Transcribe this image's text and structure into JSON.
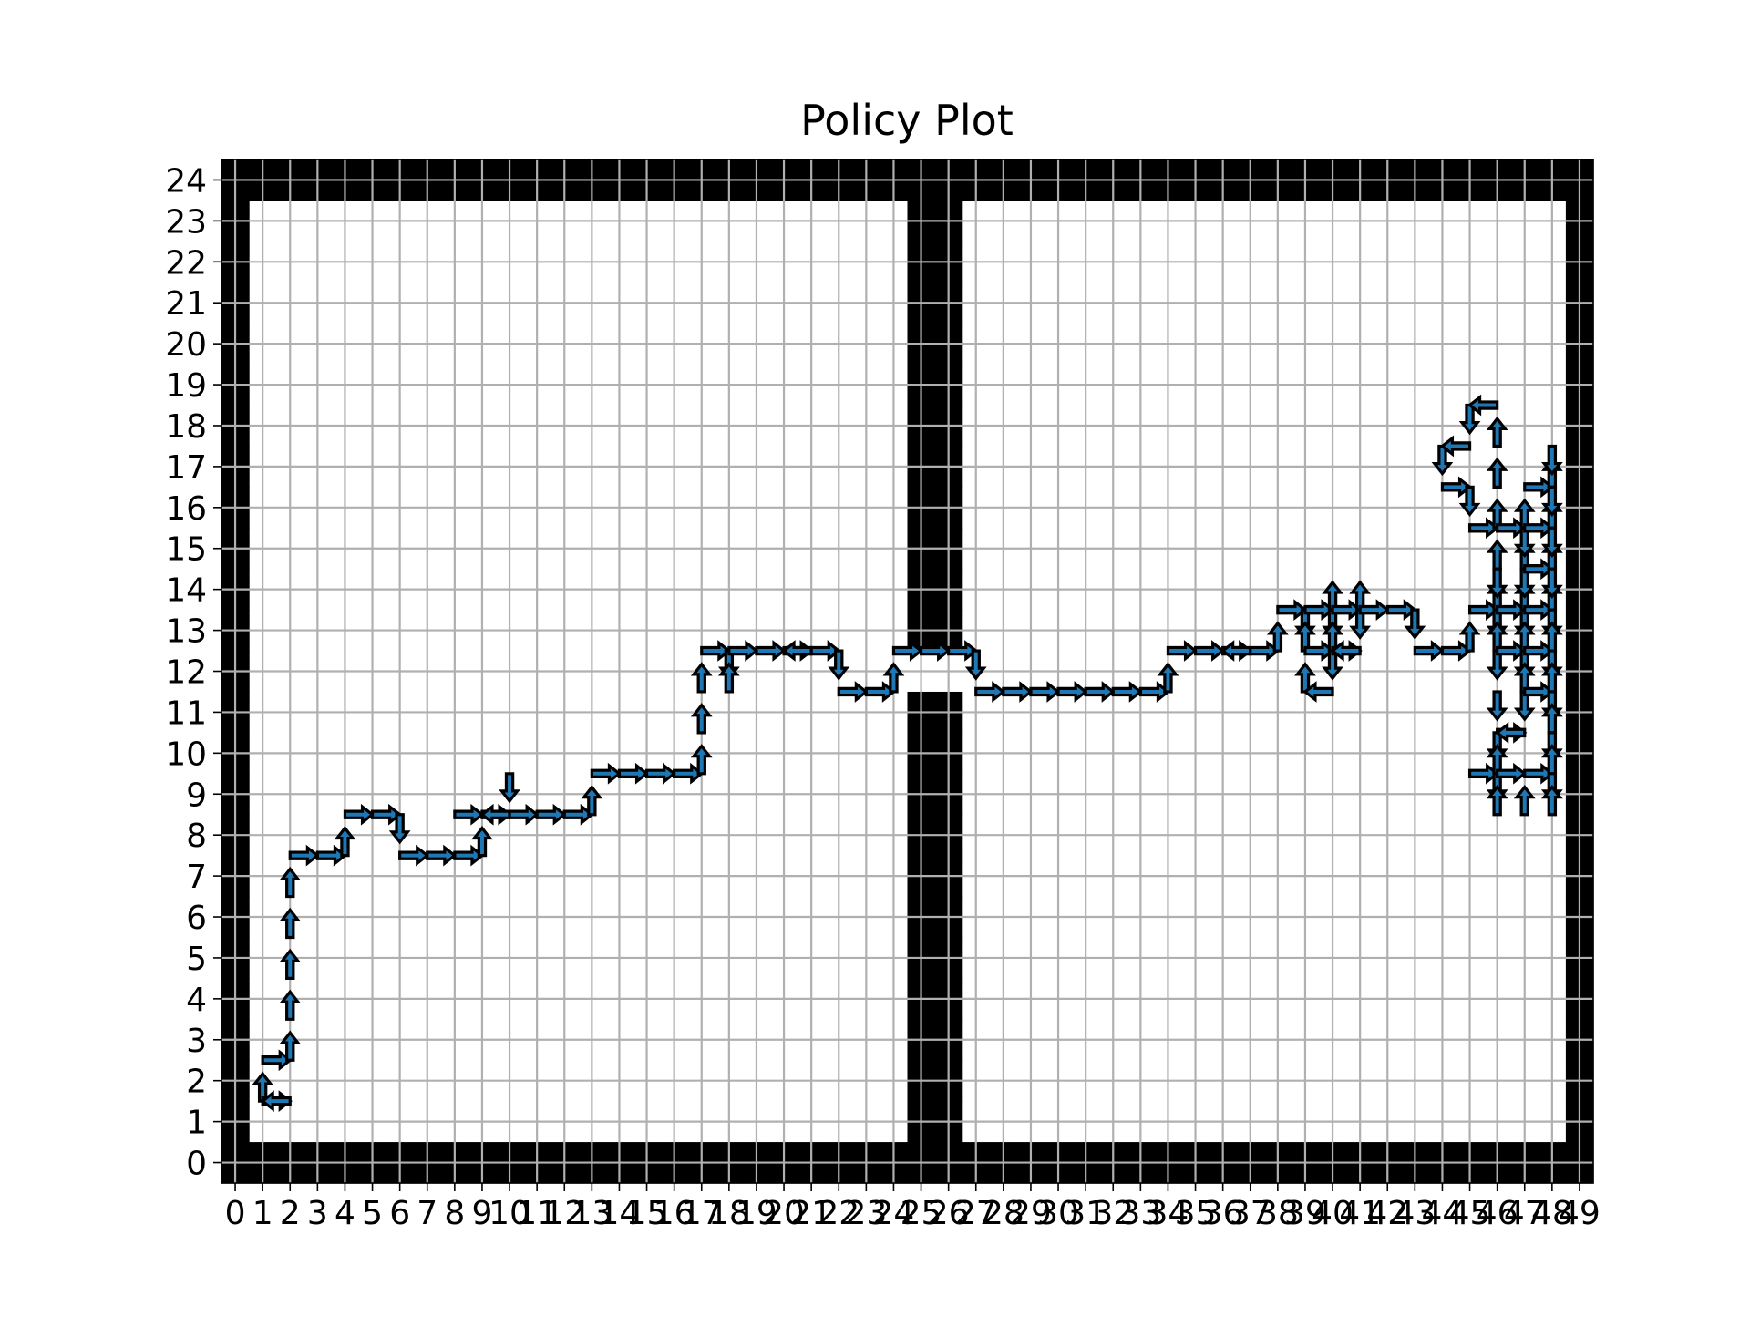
{
  "chart_data": {
    "type": "heatmap",
    "title": "Policy Plot",
    "xlabel": "",
    "ylabel": "",
    "xlim": [
      0,
      49
    ],
    "ylim": [
      0,
      24
    ],
    "x_ticks": [
      "0",
      "1",
      "2",
      "3",
      "4",
      "5",
      "6",
      "7",
      "8",
      "9",
      "10",
      "11",
      "12",
      "13",
      "14",
      "15",
      "16",
      "17",
      "18",
      "19",
      "20",
      "21",
      "22",
      "23",
      "24",
      "25",
      "26",
      "27",
      "28",
      "29",
      "30",
      "31",
      "32",
      "33",
      "34",
      "35",
      "36",
      "37",
      "38",
      "39",
      "40",
      "41",
      "42",
      "43",
      "44",
      "45",
      "46",
      "47",
      "48",
      "49"
    ],
    "y_ticks": [
      "0",
      "1",
      "2",
      "3",
      "4",
      "5",
      "6",
      "7",
      "8",
      "9",
      "10",
      "11",
      "12",
      "13",
      "14",
      "15",
      "16",
      "17",
      "18",
      "19",
      "20",
      "21",
      "22",
      "23",
      "24"
    ],
    "grid": true,
    "colors": {
      "wall": "#000000",
      "free": "#ffffff",
      "grid": "#b0b0b0",
      "arrow_fill": "#1f77b4",
      "arrow_edge": "#000000"
    },
    "walls": {
      "border_bottom_rows": [
        0
      ],
      "border_top_rows": [
        24
      ],
      "border_left_cols": [
        0
      ],
      "border_right_cols": [
        49
      ],
      "vertical_wall_cols": [
        25,
        26
      ],
      "vertical_wall_rows": [
        1,
        23
      ],
      "doorway_cells": [
        [
          25,
          12
        ],
        [
          26,
          12
        ]
      ]
    },
    "policy": [
      {
        "x": 1,
        "y": 1,
        "dir": "up"
      },
      {
        "x": 1,
        "y": 1,
        "dir": "right"
      },
      {
        "x": 2,
        "y": 1,
        "dir": "left"
      },
      {
        "x": 1,
        "y": 2,
        "dir": "right"
      },
      {
        "x": 2,
        "y": 2,
        "dir": "up"
      },
      {
        "x": 2,
        "y": 3,
        "dir": "up"
      },
      {
        "x": 2,
        "y": 4,
        "dir": "up"
      },
      {
        "x": 2,
        "y": 5,
        "dir": "up"
      },
      {
        "x": 2,
        "y": 6,
        "dir": "up"
      },
      {
        "x": 2,
        "y": 7,
        "dir": "right"
      },
      {
        "x": 3,
        "y": 7,
        "dir": "right"
      },
      {
        "x": 4,
        "y": 7,
        "dir": "up"
      },
      {
        "x": 4,
        "y": 8,
        "dir": "right"
      },
      {
        "x": 5,
        "y": 8,
        "dir": "right"
      },
      {
        "x": 6,
        "y": 8,
        "dir": "down"
      },
      {
        "x": 6,
        "y": 7,
        "dir": "right"
      },
      {
        "x": 7,
        "y": 7,
        "dir": "right"
      },
      {
        "x": 8,
        "y": 7,
        "dir": "right"
      },
      {
        "x": 9,
        "y": 7,
        "dir": "up"
      },
      {
        "x": 8,
        "y": 8,
        "dir": "right"
      },
      {
        "x": 9,
        "y": 8,
        "dir": "right"
      },
      {
        "x": 10,
        "y": 8,
        "dir": "left"
      },
      {
        "x": 10,
        "y": 9,
        "dir": "down"
      },
      {
        "x": 10,
        "y": 8,
        "dir": "right"
      },
      {
        "x": 11,
        "y": 8,
        "dir": "right"
      },
      {
        "x": 12,
        "y": 8,
        "dir": "right"
      },
      {
        "x": 13,
        "y": 8,
        "dir": "up"
      },
      {
        "x": 13,
        "y": 9,
        "dir": "right"
      },
      {
        "x": 14,
        "y": 9,
        "dir": "right"
      },
      {
        "x": 15,
        "y": 9,
        "dir": "right"
      },
      {
        "x": 16,
        "y": 9,
        "dir": "right"
      },
      {
        "x": 17,
        "y": 9,
        "dir": "up"
      },
      {
        "x": 17,
        "y": 10,
        "dir": "up"
      },
      {
        "x": 17,
        "y": 11,
        "dir": "up"
      },
      {
        "x": 17,
        "y": 12,
        "dir": "right"
      },
      {
        "x": 18,
        "y": 12,
        "dir": "down"
      },
      {
        "x": 18,
        "y": 11,
        "dir": "up"
      },
      {
        "x": 18,
        "y": 12,
        "dir": "right"
      },
      {
        "x": 19,
        "y": 12,
        "dir": "right"
      },
      {
        "x": 20,
        "y": 12,
        "dir": "right"
      },
      {
        "x": 21,
        "y": 12,
        "dir": "left"
      },
      {
        "x": 21,
        "y": 12,
        "dir": "right"
      },
      {
        "x": 22,
        "y": 12,
        "dir": "down"
      },
      {
        "x": 22,
        "y": 11,
        "dir": "right"
      },
      {
        "x": 23,
        "y": 11,
        "dir": "right"
      },
      {
        "x": 24,
        "y": 11,
        "dir": "up"
      },
      {
        "x": 24,
        "y": 12,
        "dir": "right"
      },
      {
        "x": 25,
        "y": 12,
        "dir": "right"
      },
      {
        "x": 26,
        "y": 12,
        "dir": "right"
      },
      {
        "x": 27,
        "y": 12,
        "dir": "down"
      },
      {
        "x": 27,
        "y": 11,
        "dir": "right"
      },
      {
        "x": 28,
        "y": 11,
        "dir": "right"
      },
      {
        "x": 29,
        "y": 11,
        "dir": "right"
      },
      {
        "x": 30,
        "y": 11,
        "dir": "right"
      },
      {
        "x": 31,
        "y": 11,
        "dir": "right"
      },
      {
        "x": 32,
        "y": 11,
        "dir": "right"
      },
      {
        "x": 33,
        "y": 11,
        "dir": "right"
      },
      {
        "x": 34,
        "y": 11,
        "dir": "up"
      },
      {
        "x": 34,
        "y": 12,
        "dir": "right"
      },
      {
        "x": 35,
        "y": 12,
        "dir": "right"
      },
      {
        "x": 36,
        "y": 12,
        "dir": "right"
      },
      {
        "x": 37,
        "y": 12,
        "dir": "left"
      },
      {
        "x": 37,
        "y": 12,
        "dir": "right"
      },
      {
        "x": 38,
        "y": 12,
        "dir": "up"
      },
      {
        "x": 38,
        "y": 13,
        "dir": "right"
      },
      {
        "x": 39,
        "y": 13,
        "dir": "down"
      },
      {
        "x": 39,
        "y": 13,
        "dir": "right"
      },
      {
        "x": 40,
        "y": 13,
        "dir": "up"
      },
      {
        "x": 40,
        "y": 13,
        "dir": "down"
      },
      {
        "x": 40,
        "y": 13,
        "dir": "right"
      },
      {
        "x": 41,
        "y": 13,
        "dir": "up"
      },
      {
        "x": 41,
        "y": 13,
        "dir": "down"
      },
      {
        "x": 41,
        "y": 13,
        "dir": "right"
      },
      {
        "x": 42,
        "y": 13,
        "dir": "right"
      },
      {
        "x": 43,
        "y": 13,
        "dir": "down"
      },
      {
        "x": 39,
        "y": 12,
        "dir": "up"
      },
      {
        "x": 39,
        "y": 12,
        "dir": "right"
      },
      {
        "x": 40,
        "y": 12,
        "dir": "up"
      },
      {
        "x": 40,
        "y": 12,
        "dir": "down"
      },
      {
        "x": 40,
        "y": 12,
        "dir": "right"
      },
      {
        "x": 41,
        "y": 12,
        "dir": "left"
      },
      {
        "x": 39,
        "y": 11,
        "dir": "up"
      },
      {
        "x": 40,
        "y": 11,
        "dir": "left"
      },
      {
        "x": 43,
        "y": 12,
        "dir": "right"
      },
      {
        "x": 44,
        "y": 12,
        "dir": "right"
      },
      {
        "x": 45,
        "y": 12,
        "dir": "up"
      },
      {
        "x": 45,
        "y": 13,
        "dir": "right"
      },
      {
        "x": 46,
        "y": 13,
        "dir": "up"
      },
      {
        "x": 46,
        "y": 13,
        "dir": "down"
      },
      {
        "x": 46,
        "y": 13,
        "dir": "right"
      },
      {
        "x": 47,
        "y": 13,
        "dir": "up"
      },
      {
        "x": 47,
        "y": 13,
        "dir": "down"
      },
      {
        "x": 47,
        "y": 13,
        "dir": "right"
      },
      {
        "x": 48,
        "y": 13,
        "dir": "up"
      },
      {
        "x": 48,
        "y": 13,
        "dir": "down"
      },
      {
        "x": 46,
        "y": 12,
        "dir": "up"
      },
      {
        "x": 46,
        "y": 12,
        "dir": "down"
      },
      {
        "x": 46,
        "y": 12,
        "dir": "right"
      },
      {
        "x": 47,
        "y": 12,
        "dir": "up"
      },
      {
        "x": 47,
        "y": 12,
        "dir": "down"
      },
      {
        "x": 47,
        "y": 12,
        "dir": "right"
      },
      {
        "x": 48,
        "y": 12,
        "dir": "up"
      },
      {
        "x": 48,
        "y": 12,
        "dir": "down"
      },
      {
        "x": 46,
        "y": 11,
        "dir": "down"
      },
      {
        "x": 47,
        "y": 11,
        "dir": "up"
      },
      {
        "x": 47,
        "y": 11,
        "dir": "down"
      },
      {
        "x": 47,
        "y": 11,
        "dir": "right"
      },
      {
        "x": 48,
        "y": 11,
        "dir": "up"
      },
      {
        "x": 48,
        "y": 11,
        "dir": "down"
      },
      {
        "x": 46,
        "y": 10,
        "dir": "right"
      },
      {
        "x": 46,
        "y": 10,
        "dir": "down"
      },
      {
        "x": 47,
        "y": 10,
        "dir": "left"
      },
      {
        "x": 48,
        "y": 10,
        "dir": "up"
      },
      {
        "x": 48,
        "y": 10,
        "dir": "down"
      },
      {
        "x": 45,
        "y": 9,
        "dir": "right"
      },
      {
        "x": 46,
        "y": 9,
        "dir": "up"
      },
      {
        "x": 46,
        "y": 9,
        "dir": "down"
      },
      {
        "x": 46,
        "y": 9,
        "dir": "right"
      },
      {
        "x": 47,
        "y": 9,
        "dir": "right"
      },
      {
        "x": 48,
        "y": 9,
        "dir": "up"
      },
      {
        "x": 48,
        "y": 9,
        "dir": "down"
      },
      {
        "x": 46,
        "y": 8,
        "dir": "up"
      },
      {
        "x": 47,
        "y": 8,
        "dir": "up"
      },
      {
        "x": 48,
        "y": 8,
        "dir": "up"
      },
      {
        "x": 46,
        "y": 14,
        "dir": "up"
      },
      {
        "x": 46,
        "y": 14,
        "dir": "down"
      },
      {
        "x": 47,
        "y": 14,
        "dir": "up"
      },
      {
        "x": 47,
        "y": 14,
        "dir": "down"
      },
      {
        "x": 47,
        "y": 14,
        "dir": "right"
      },
      {
        "x": 48,
        "y": 14,
        "dir": "up"
      },
      {
        "x": 48,
        "y": 14,
        "dir": "down"
      },
      {
        "x": 45,
        "y": 15,
        "dir": "right"
      },
      {
        "x": 46,
        "y": 15,
        "dir": "up"
      },
      {
        "x": 46,
        "y": 15,
        "dir": "right"
      },
      {
        "x": 47,
        "y": 15,
        "dir": "up"
      },
      {
        "x": 47,
        "y": 15,
        "dir": "down"
      },
      {
        "x": 47,
        "y": 15,
        "dir": "right"
      },
      {
        "x": 48,
        "y": 15,
        "dir": "up"
      },
      {
        "x": 48,
        "y": 15,
        "dir": "down"
      },
      {
        "x": 44,
        "y": 16,
        "dir": "right"
      },
      {
        "x": 45,
        "y": 16,
        "dir": "down"
      },
      {
        "x": 46,
        "y": 16,
        "dir": "up"
      },
      {
        "x": 47,
        "y": 16,
        "dir": "right"
      },
      {
        "x": 48,
        "y": 16,
        "dir": "up"
      },
      {
        "x": 48,
        "y": 16,
        "dir": "down"
      },
      {
        "x": 44,
        "y": 17,
        "dir": "down"
      },
      {
        "x": 45,
        "y": 17,
        "dir": "left"
      },
      {
        "x": 46,
        "y": 17,
        "dir": "up"
      },
      {
        "x": 48,
        "y": 17,
        "dir": "down"
      },
      {
        "x": 45,
        "y": 18,
        "dir": "down"
      },
      {
        "x": 46,
        "y": 18,
        "dir": "left"
      }
    ]
  }
}
